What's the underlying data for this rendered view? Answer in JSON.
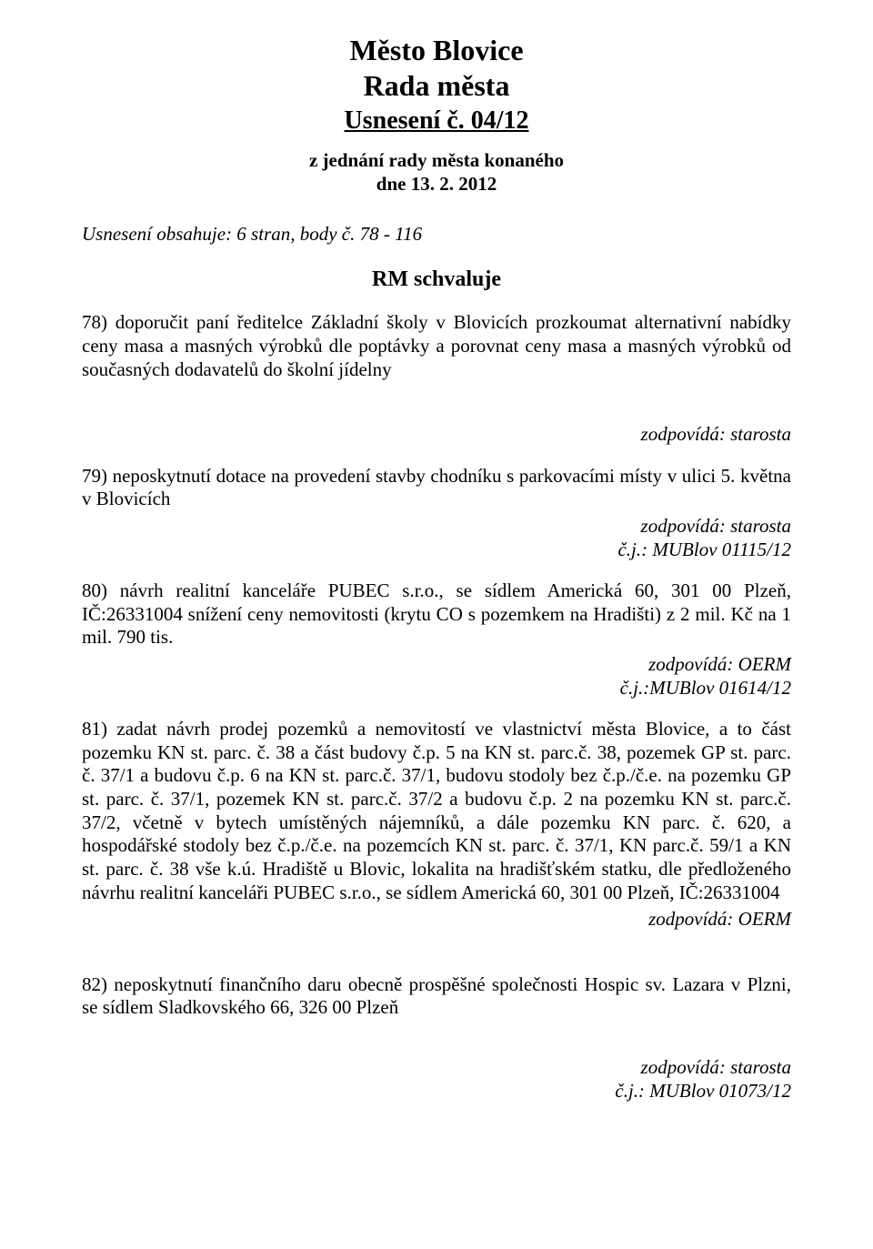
{
  "header": {
    "line1": "Město Blovice",
    "line2": "Rada města",
    "line3": "Usnesení č. 04/12",
    "subtitle_line1": "z jednání rady města konaného",
    "subtitle_line2": "dne 13. 2. 2012"
  },
  "obsahuje": "Usnesení obsahuje: 6 stran, body č. 78 - 116",
  "section_head": "RM schvaluje",
  "items": {
    "p78": "78) doporučit paní ředitelce Základní školy v Blovicích prozkoumat alternativní nabídky ceny masa a masných výrobků dle poptávky a porovnat ceny masa a masných výrobků od současných dodavatelů do školní jídelny",
    "p78_attr1": "zodpovídá: starosta",
    "p79": "79) neposkytnutí dotace na provedení stavby chodníku s parkovacími místy v ulici 5. května v Blovicích",
    "p79_attr1": "zodpovídá: starosta",
    "p79_attr2": "č.j.: MUBlov 01115/12",
    "p80": "80) návrh realitní kanceláře PUBEC s.r.o., se sídlem Americká 60, 301 00 Plzeň, IČ:26331004 snížení ceny nemovitosti (krytu CO s pozemkem na Hradišti) z  2 mil. Kč na 1 mil. 790 tis.",
    "p80_attr1": "zodpovídá: OERM",
    "p80_attr2": "č.j.:MUBlov 01614/12",
    "p81": "81) zadat návrh prodej pozemků a nemovitostí ve vlastnictví města Blovice, a to část pozemku KN st. parc. č. 38 a část budovy č.p. 5 na KN st. parc.č. 38, pozemek GP st. parc. č. 37/1  a budovu č.p. 6 na KN st. parc.č. 37/1, budovu stodoly bez č.p./č.e. na pozemku GP st. parc. č. 37/1, pozemek KN st. parc.č. 37/2 a budovu č.p. 2 na pozemku KN st. parc.č. 37/2, včetně v bytech umístěných nájemníků, a dále pozemku KN parc. č. 620, a hospodářské stodoly bez č.p./č.e. na pozemcích KN st. parc. č. 37/1, KN parc.č. 59/1 a KN st. parc. č. 38 vše k.ú. Hradiště u Blovic, lokalita na hradišťském statku, dle předloženého návrhu realitní kanceláři PUBEC s.r.o., se sídlem Americká 60, 301 00 Plzeň, IČ:26331004",
    "p81_attr1": "zodpovídá: OERM",
    "p82": "82) neposkytnutí finančního daru obecně prospěšné společnosti Hospic sv. Lazara v Plzni, se sídlem Sladkovského 66, 326 00 Plzeň",
    "p82_attr1": "zodpovídá: starosta",
    "p82_attr2": "č.j.: MUBlov 01073/12"
  }
}
